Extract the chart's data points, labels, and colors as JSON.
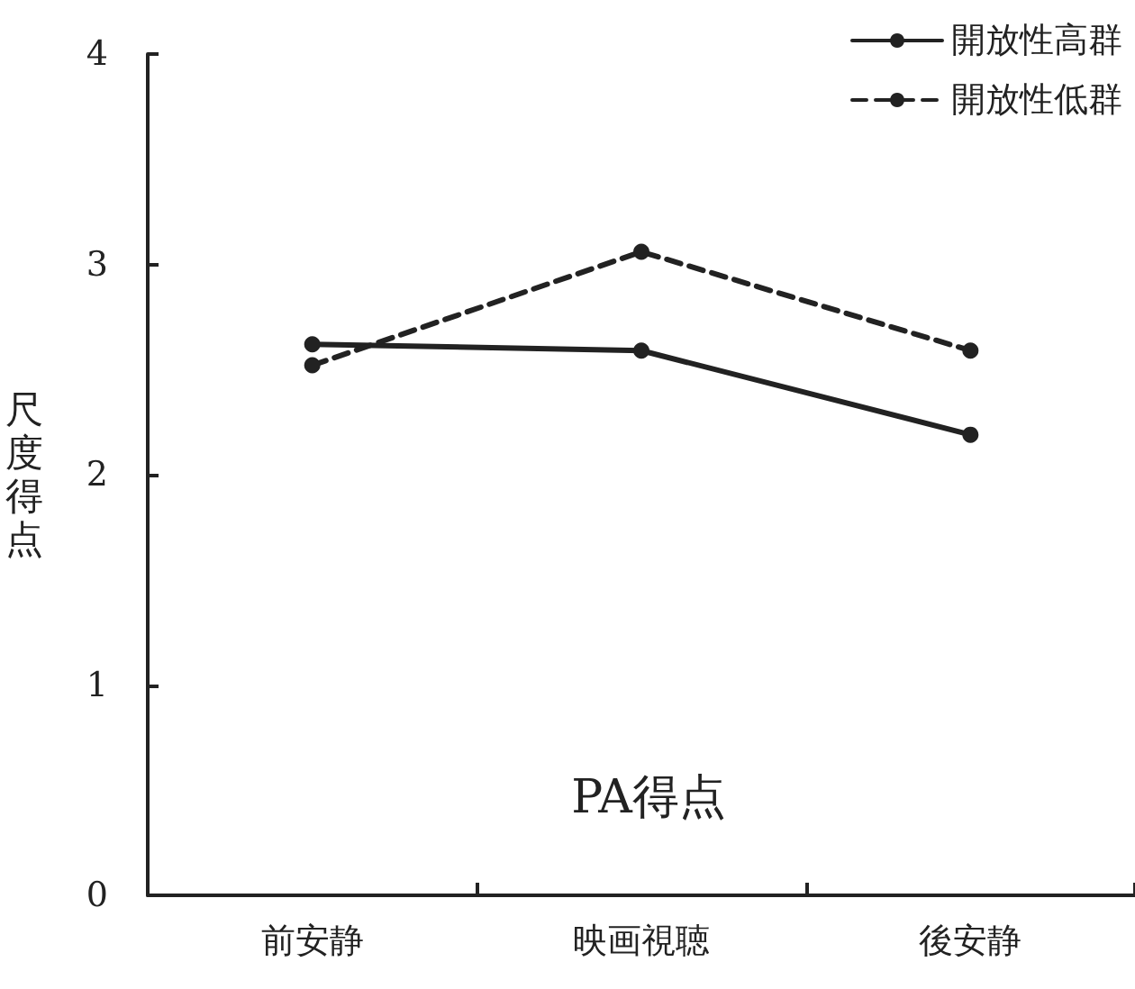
{
  "chart_data": {
    "type": "line",
    "title": "PA得点",
    "ylabel": "尺度得点",
    "categories": [
      "前安静",
      "映画視聴",
      "後安静"
    ],
    "series": [
      {
        "name": "開放性高群",
        "color": "#222222",
        "line_style": "solid",
        "values": [
          2.62,
          2.59,
          2.19
        ]
      },
      {
        "name": "開放性低群",
        "color": "#222222",
        "line_style": "dashed",
        "values": [
          2.52,
          3.06,
          2.59
        ]
      }
    ],
    "ylim": [
      0,
      4
    ],
    "yticks": [
      0,
      1,
      2,
      3,
      4
    ],
    "grid": false,
    "legend": "top right",
    "marker": "circle"
  }
}
